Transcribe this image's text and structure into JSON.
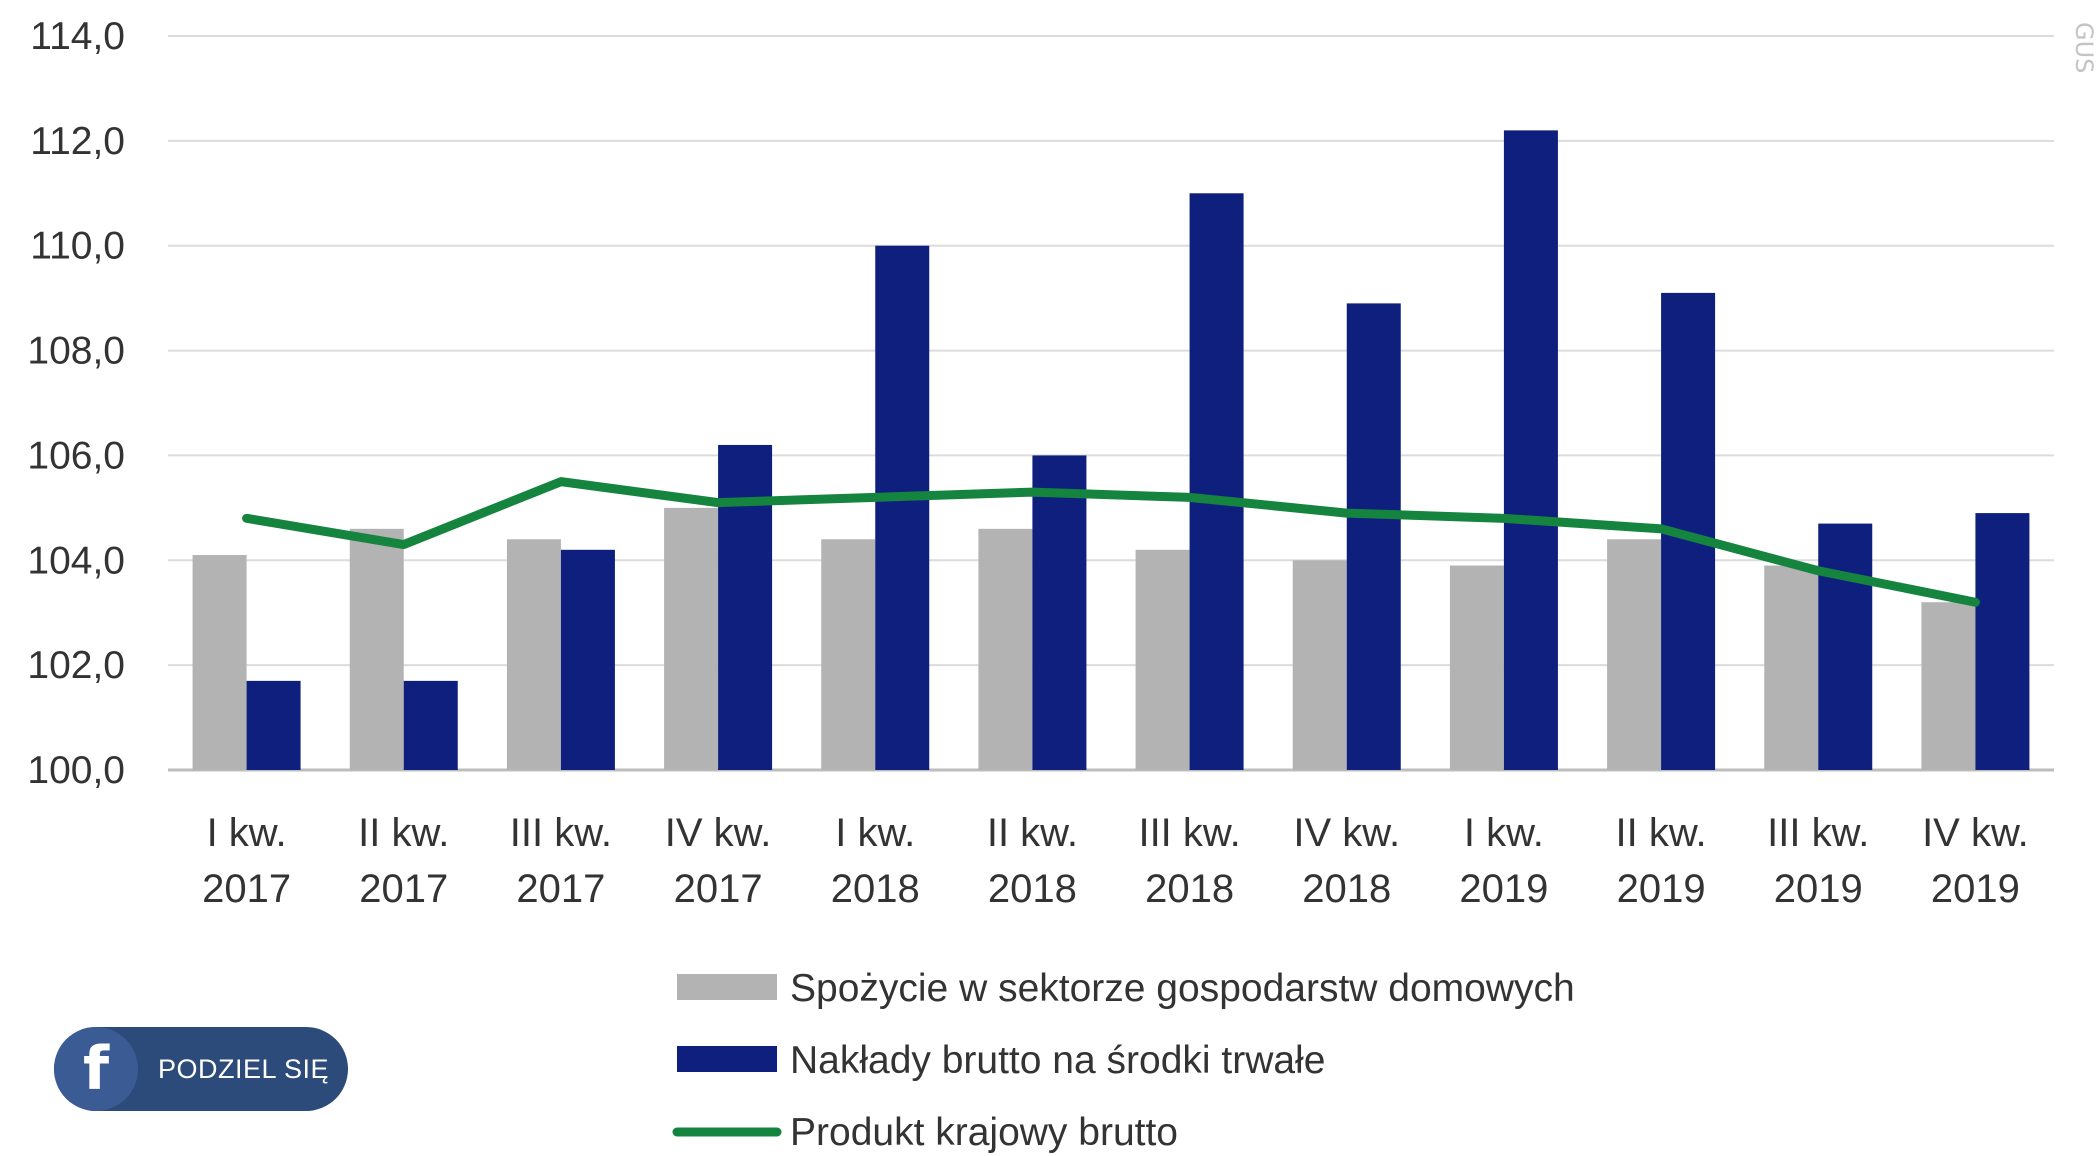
{
  "chart_data": {
    "type": "bar",
    "categories": [
      [
        "I kw.",
        "2017"
      ],
      [
        "II kw.",
        "2017"
      ],
      [
        "III kw.",
        "2017"
      ],
      [
        "IV kw.",
        "2017"
      ],
      [
        "I kw.",
        "2018"
      ],
      [
        "II kw.",
        "2018"
      ],
      [
        "III kw.",
        "2018"
      ],
      [
        "IV kw.",
        "2018"
      ],
      [
        "I kw.",
        "2019"
      ],
      [
        "II kw.",
        "2019"
      ],
      [
        "III kw.",
        "2019"
      ],
      [
        "IV kw.",
        "2019"
      ]
    ],
    "series": [
      {
        "name": "Spożycie w sektorze gospodarstw domowych",
        "type": "bar",
        "color": "#b3b3b3",
        "values": [
          104.1,
          104.6,
          104.4,
          105.0,
          104.4,
          104.6,
          104.2,
          104.0,
          103.9,
          104.4,
          103.9,
          103.2
        ]
      },
      {
        "name": "Nakłady brutto na środki trwałe",
        "type": "bar",
        "color": "#0f1f7e",
        "values": [
          101.7,
          101.7,
          104.2,
          106.2,
          110.0,
          106.0,
          111.0,
          108.9,
          112.2,
          109.1,
          104.7,
          104.9
        ]
      },
      {
        "name": "Produkt krajowy brutto",
        "type": "line",
        "color": "#15843e",
        "values": [
          104.8,
          104.3,
          105.5,
          105.1,
          105.2,
          105.3,
          105.2,
          104.9,
          104.8,
          104.6,
          103.8,
          103.2
        ]
      }
    ],
    "yticks": [
      "100,0",
      "102,0",
      "104,0",
      "106,0",
      "108,0",
      "110,0",
      "112,0",
      "114,0"
    ],
    "ylim": [
      100,
      114
    ],
    "grid": true,
    "legend_position": "bottom"
  },
  "share": {
    "label": "PODZIEL SIĘ",
    "icon": "facebook-icon",
    "color": "#2c4a7a"
  },
  "watermark": "GUS"
}
